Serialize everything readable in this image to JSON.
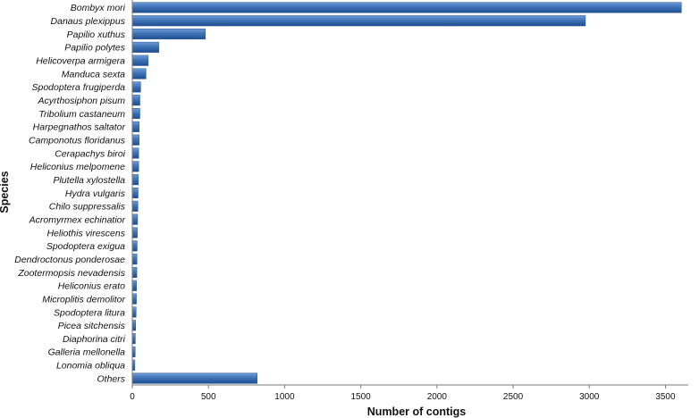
{
  "chart_data": {
    "type": "bar",
    "orientation": "horizontal",
    "xlabel": "Number of contigs",
    "ylabel": "Species",
    "xlim": [
      0,
      3650
    ],
    "xticks": [
      0,
      500,
      1000,
      1500,
      2000,
      2500,
      3000,
      3500
    ],
    "grid": false,
    "legend": "none",
    "bar_color": "#3f74b8",
    "categories": [
      "Bombyx mori",
      "Danaus plexippus",
      "Papilio xuthus",
      "Papilio polytes",
      "Helicoverpa armigera",
      "Manduca sexta",
      "Spodoptera frugiperda",
      "Acyrthosiphon pisum",
      "Tribolium castaneum",
      "Harpegnathos saltator",
      "Camponotus floridanus",
      "Cerapachys biroi",
      "Heliconius melpomene",
      "Plutella xylostella",
      "Hydra vulgaris",
      "Chilo suppressalis",
      "Acromyrmex echinatior",
      "Heliothis virescens",
      "Spodoptera exigua",
      "Dendroctonus ponderosae",
      "Zootermopsis nevadensis",
      "Heliconius erato",
      "Microplitis demolitor",
      "Spodoptera litura",
      "Picea sitchensis",
      "Diaphorina citri",
      "Galleria mellonella",
      "Lonomia obliqua",
      "Others"
    ],
    "values": [
      3605,
      2975,
      480,
      175,
      105,
      90,
      55,
      50,
      50,
      45,
      45,
      42,
      42,
      40,
      38,
      37,
      35,
      33,
      32,
      31,
      30,
      28,
      27,
      25,
      22,
      20,
      19,
      17,
      820
    ]
  }
}
